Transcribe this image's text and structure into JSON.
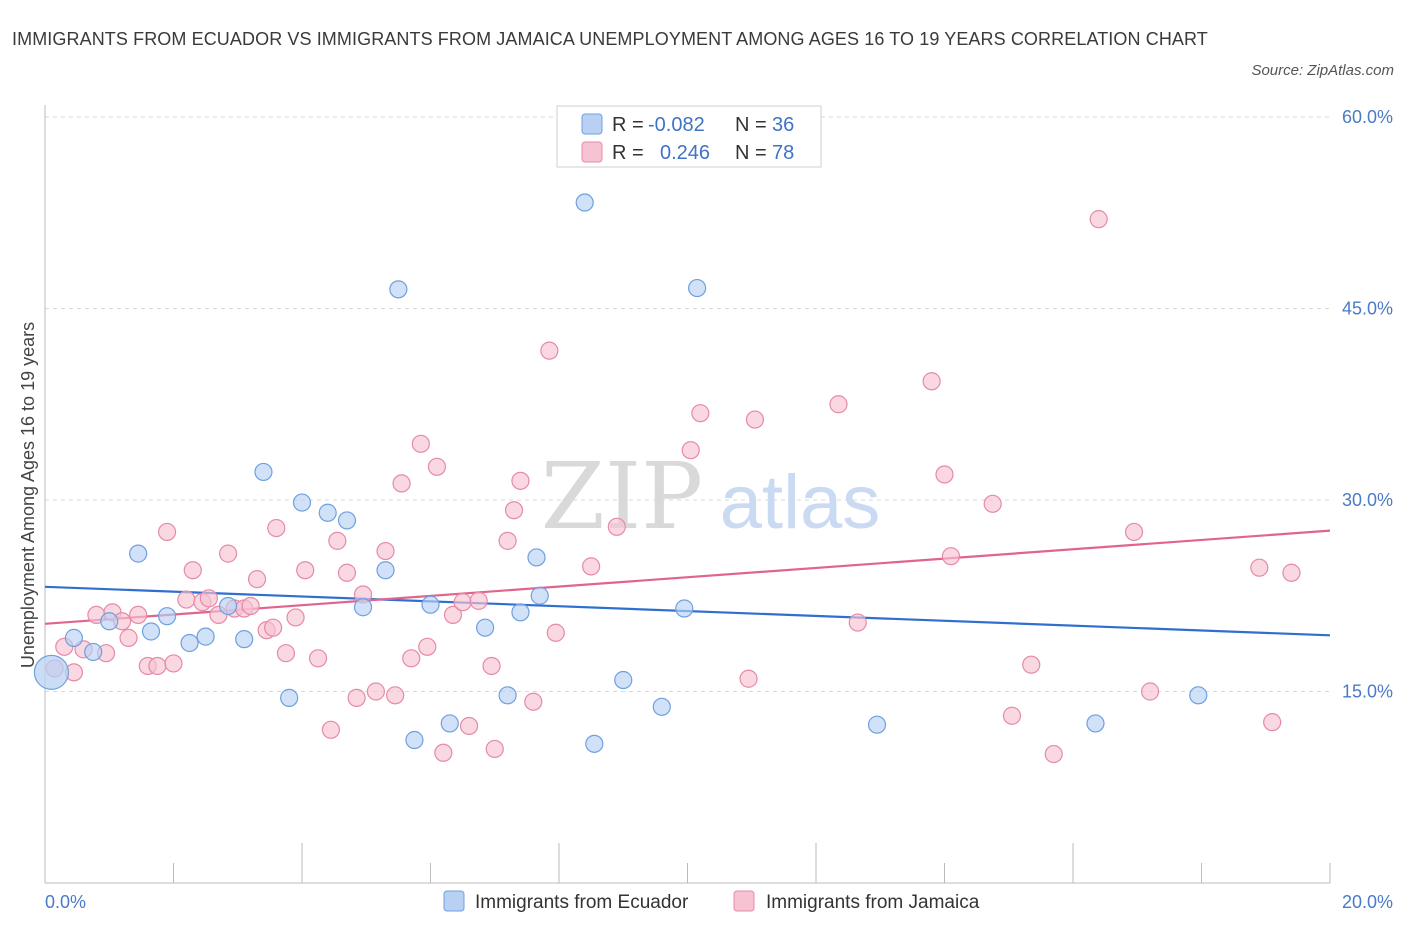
{
  "title": "IMMIGRANTS FROM ECUADOR VS IMMIGRANTS FROM JAMAICA UNEMPLOYMENT AMONG AGES 16 TO 19 YEARS CORRELATION CHART",
  "source": "Source: ZipAtlas.com",
  "watermark": {
    "zip": "ZIP",
    "atlas": "atlas"
  },
  "legend": {
    "ecuador": {
      "r_label": "R =",
      "r_value": "-0.082",
      "n_label": "N =",
      "n_value": "36"
    },
    "jamaica": {
      "r_label": "R =",
      "r_value": "0.246",
      "n_label": "N =",
      "n_value": "78"
    }
  },
  "bottom_legend": {
    "ecuador": "Immigrants from Ecuador",
    "jamaica": "Immigrants from Jamaica"
  },
  "colors": {
    "ecuador_fill": "#b8d1f3",
    "ecuador_stroke": "#6fa0df",
    "ecuador_line": "#2f6fd0",
    "jamaica_fill": "#f7c3d3",
    "jamaica_stroke": "#e58aa8",
    "jamaica_line": "#e0648f",
    "axis_text": "#4a7bc8",
    "grid": "#d8d8d8"
  },
  "chart_data": {
    "type": "scatter",
    "title": "IMMIGRANTS FROM ECUADOR VS IMMIGRANTS FROM JAMAICA UNEMPLOYMENT AMONG AGES 16 TO 19 YEARS CORRELATION CHART",
    "xlabel": "",
    "ylabel": "Unemployment Among Ages 16 to 19 years",
    "xlim": [
      0,
      20
    ],
    "ylim": [
      0,
      60
    ],
    "x_tick_labels": [
      "0.0%",
      "20.0%"
    ],
    "y_ticks": [
      15,
      30,
      45,
      60
    ],
    "y_tick_labels": [
      "15.0%",
      "30.0%",
      "45.0%",
      "60.0%"
    ],
    "grid": true,
    "legend_position": "top-center",
    "series": [
      {
        "name": "Immigrants from Ecuador",
        "points": [
          [
            0.1,
            16.5
          ],
          [
            0.45,
            19.2
          ],
          [
            0.75,
            18.1
          ],
          [
            1.0,
            20.5
          ],
          [
            1.45,
            25.8
          ],
          [
            1.65,
            19.7
          ],
          [
            1.9,
            20.9
          ],
          [
            2.25,
            18.8
          ],
          [
            2.5,
            19.3
          ],
          [
            2.85,
            21.7
          ],
          [
            3.1,
            19.1
          ],
          [
            3.4,
            32.2
          ],
          [
            3.8,
            14.5
          ],
          [
            4.0,
            29.8
          ],
          [
            4.4,
            29.0
          ],
          [
            4.7,
            28.4
          ],
          [
            4.95,
            21.6
          ],
          [
            5.3,
            24.5
          ],
          [
            5.5,
            46.5
          ],
          [
            5.75,
            11.2
          ],
          [
            6.0,
            21.8
          ],
          [
            6.3,
            12.5
          ],
          [
            6.85,
            20.0
          ],
          [
            7.2,
            14.7
          ],
          [
            7.4,
            21.2
          ],
          [
            7.65,
            25.5
          ],
          [
            7.7,
            22.5
          ],
          [
            8.4,
            53.3
          ],
          [
            8.55,
            10.9
          ],
          [
            9.0,
            15.9
          ],
          [
            9.6,
            13.8
          ],
          [
            9.95,
            21.5
          ],
          [
            10.15,
            46.6
          ],
          [
            12.95,
            12.4
          ],
          [
            16.35,
            12.5
          ],
          [
            17.95,
            14.7
          ]
        ],
        "trend": {
          "x": [
            0,
            20
          ],
          "y": [
            23.2,
            19.4
          ]
        }
      },
      {
        "name": "Immigrants from Jamaica",
        "points": [
          [
            0.15,
            16.8
          ],
          [
            0.3,
            18.5
          ],
          [
            0.45,
            16.5
          ],
          [
            0.6,
            18.3
          ],
          [
            0.8,
            21.0
          ],
          [
            0.95,
            18.0
          ],
          [
            1.05,
            21.2
          ],
          [
            1.2,
            20.5
          ],
          [
            1.3,
            19.2
          ],
          [
            1.45,
            21.0
          ],
          [
            1.6,
            17.0
          ],
          [
            1.75,
            17.0
          ],
          [
            1.9,
            27.5
          ],
          [
            2.0,
            17.2
          ],
          [
            2.2,
            22.2
          ],
          [
            2.3,
            24.5
          ],
          [
            2.45,
            22.0
          ],
          [
            2.55,
            22.3
          ],
          [
            2.7,
            21.0
          ],
          [
            2.85,
            25.8
          ],
          [
            2.95,
            21.5
          ],
          [
            3.1,
            21.5
          ],
          [
            3.2,
            21.7
          ],
          [
            3.3,
            23.8
          ],
          [
            3.45,
            19.8
          ],
          [
            3.55,
            20.0
          ],
          [
            3.6,
            27.8
          ],
          [
            3.75,
            18.0
          ],
          [
            3.9,
            20.8
          ],
          [
            4.05,
            24.5
          ],
          [
            4.25,
            17.6
          ],
          [
            4.45,
            12.0
          ],
          [
            4.55,
            26.8
          ],
          [
            4.7,
            24.3
          ],
          [
            4.85,
            14.5
          ],
          [
            4.95,
            22.6
          ],
          [
            5.15,
            15.0
          ],
          [
            5.3,
            26.0
          ],
          [
            5.45,
            14.7
          ],
          [
            5.55,
            31.3
          ],
          [
            5.7,
            17.6
          ],
          [
            5.85,
            34.4
          ],
          [
            5.95,
            18.5
          ],
          [
            6.1,
            32.6
          ],
          [
            6.2,
            10.2
          ],
          [
            6.35,
            21.0
          ],
          [
            6.5,
            22.0
          ],
          [
            6.6,
            12.3
          ],
          [
            6.75,
            22.1
          ],
          [
            6.95,
            17.0
          ],
          [
            7.0,
            10.5
          ],
          [
            7.2,
            26.8
          ],
          [
            7.3,
            29.2
          ],
          [
            7.4,
            31.5
          ],
          [
            7.6,
            14.2
          ],
          [
            7.85,
            41.7
          ],
          [
            7.95,
            19.6
          ],
          [
            8.5,
            24.8
          ],
          [
            8.9,
            27.9
          ],
          [
            10.05,
            33.9
          ],
          [
            10.2,
            36.8
          ],
          [
            10.95,
            16.0
          ],
          [
            11.05,
            36.3
          ],
          [
            12.35,
            37.5
          ],
          [
            12.65,
            20.4
          ],
          [
            13.8,
            39.3
          ],
          [
            14.0,
            32.0
          ],
          [
            14.1,
            25.6
          ],
          [
            14.75,
            29.7
          ],
          [
            15.05,
            13.1
          ],
          [
            15.35,
            17.1
          ],
          [
            15.7,
            10.1
          ],
          [
            16.4,
            52.0
          ],
          [
            16.95,
            27.5
          ],
          [
            17.2,
            15.0
          ],
          [
            18.9,
            24.7
          ],
          [
            19.1,
            12.6
          ],
          [
            19.4,
            24.3
          ]
        ],
        "trend": {
          "x": [
            0,
            20
          ],
          "y": [
            20.3,
            27.6
          ]
        }
      }
    ]
  }
}
